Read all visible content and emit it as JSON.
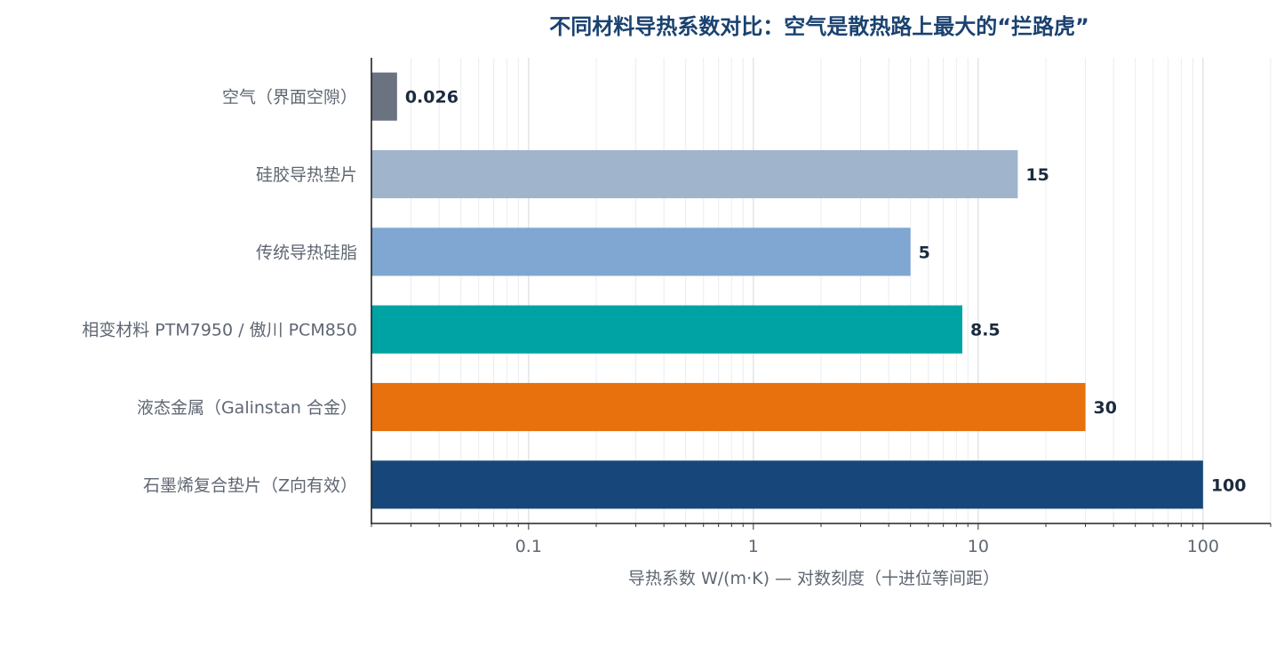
{
  "chart_data": {
    "type": "bar",
    "orientation": "horizontal",
    "title": "不同材料导热系数对比：空气是散热路上最大的“拦路虎”",
    "xlabel": "导热系数 W/(m·K) — 对数刻度（十进位等间距）",
    "ylabel": "",
    "x_scale": "log",
    "xlim": [
      0.02,
      200
    ],
    "grid": true,
    "legend": "none",
    "x_ticks": [
      {
        "value": 0.1,
        "label": "0.1"
      },
      {
        "value": 1,
        "label": "1"
      },
      {
        "value": 10,
        "label": "10"
      },
      {
        "value": 100,
        "label": "100"
      }
    ],
    "categories": [
      "空气（界面空隙）",
      "硅胶导热垫片",
      "传统导热硅脂",
      "相变材料 PTM7950 / 傲川 PCM850",
      "液态金属（Galinstan 合金）",
      "石墨烯复合垫片（Z向有效）"
    ],
    "values": [
      0.026,
      15,
      5,
      8.5,
      30,
      100
    ],
    "value_labels": [
      "0.026",
      "15",
      "5",
      "8.5",
      "30",
      "100"
    ],
    "colors": [
      "#6b7280",
      "#a0b4cc",
      "#7fa7d1",
      "#00a3a3",
      "#e8710e",
      "#17477a"
    ]
  }
}
